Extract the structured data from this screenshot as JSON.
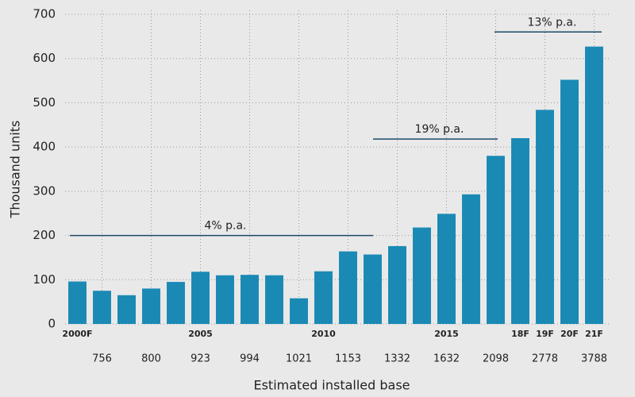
{
  "chart_data": {
    "type": "bar",
    "ylabel": "Thousand units",
    "xlabel": "Estimated installed base",
    "categories": [
      "2000F",
      null,
      null,
      null,
      null,
      "2005",
      null,
      null,
      null,
      null,
      "2010",
      null,
      null,
      null,
      null,
      "2015",
      null,
      null,
      "18F",
      "19F",
      "20F",
      "21F"
    ],
    "installed_base": [
      null,
      "756",
      null,
      "800",
      null,
      "923",
      null,
      "994",
      null,
      "1021",
      null,
      "1153",
      null,
      "1332",
      null,
      "1632",
      null,
      "2098",
      null,
      "2778",
      null,
      "3788"
    ],
    "values": [
      96,
      75,
      65,
      80,
      95,
      118,
      110,
      111,
      110,
      58,
      119,
      164,
      157,
      176,
      218,
      249,
      293,
      380,
      420,
      484,
      552,
      627
    ],
    "color": "#1a8ab5",
    "ylim": [
      0,
      700
    ],
    "yticks": [
      0,
      100,
      200,
      300,
      400,
      500,
      600,
      700
    ],
    "grid": true,
    "annotations": [
      {
        "text": "4% p.a.",
        "y": 200
      },
      {
        "text": "19% p.a.",
        "y": 418
      },
      {
        "text": "13% p.a.",
        "y": 660
      }
    ]
  }
}
